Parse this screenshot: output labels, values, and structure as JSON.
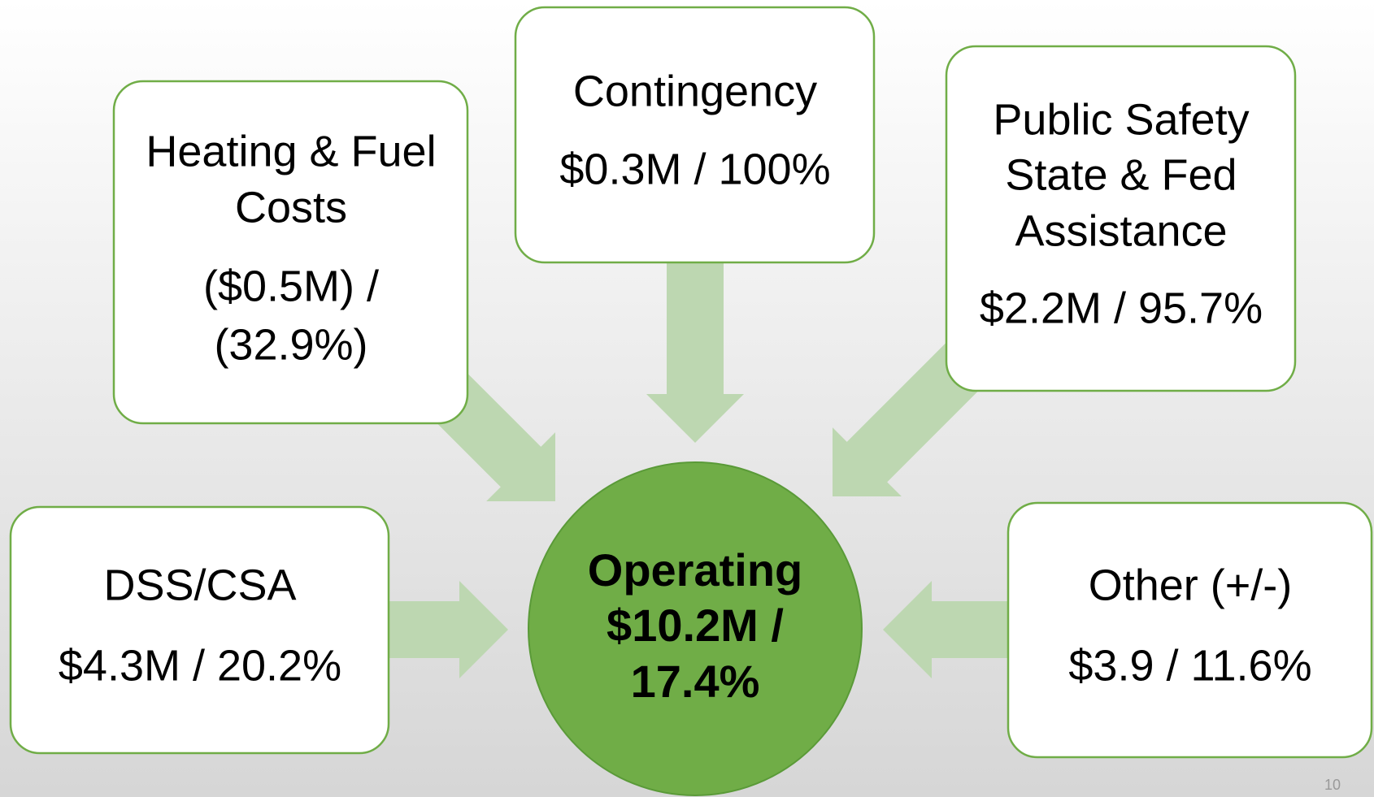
{
  "center": {
    "lines": [
      "Operating",
      "$10.2M /",
      "17.4%"
    ]
  },
  "nodes": [
    {
      "label": [
        "Heating & Fuel",
        "Costs"
      ],
      "value": [
        "($0.5M) /",
        "(32.9%)"
      ]
    },
    {
      "label": [
        "Contingency"
      ],
      "value": [
        "$0.3M / 100%"
      ]
    },
    {
      "label": [
        "Public Safety",
        "State & Fed",
        "Assistance"
      ],
      "value": [
        "$2.2M / 95.7%"
      ]
    },
    {
      "label": [
        "DSS/CSA"
      ],
      "value": [
        "$4.3M / 20.2%"
      ]
    },
    {
      "label": [
        "Other (+/-)"
      ],
      "value": [
        "$3.9 / 11.6%"
      ]
    }
  ],
  "page_number": "10"
}
